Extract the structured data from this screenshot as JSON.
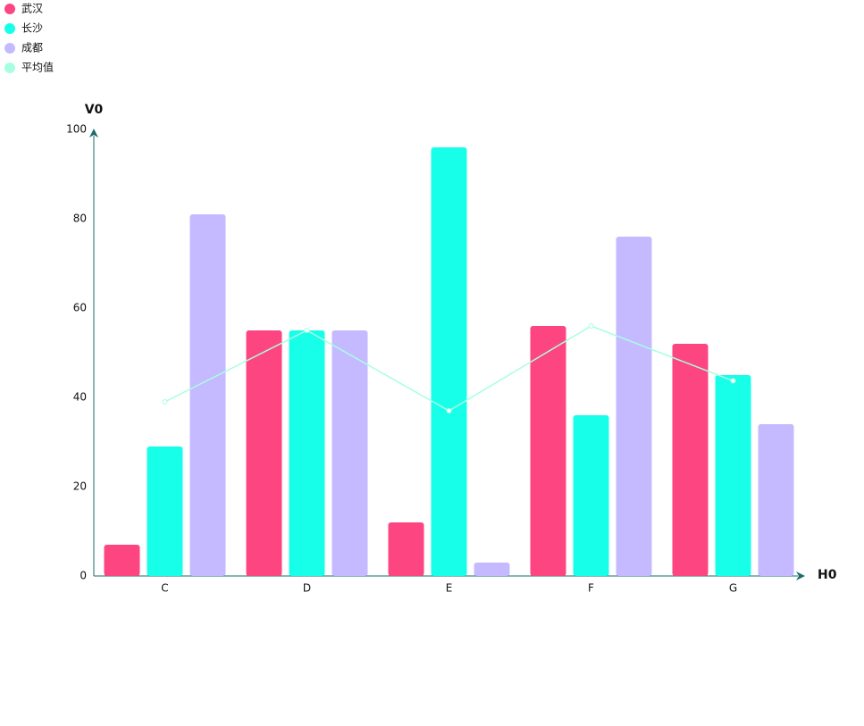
{
  "chart_data": {
    "type": "bar",
    "x_label": "H0",
    "y_label": "V0",
    "categories": [
      "C",
      "D",
      "E",
      "F",
      "G"
    ],
    "series": [
      {
        "name": "武汉",
        "color": "#fd4582",
        "values": [
          7,
          55,
          12,
          56,
          52
        ]
      },
      {
        "name": "长沙",
        "color": "#17ffe9",
        "values": [
          29,
          55,
          96,
          36,
          45
        ]
      },
      {
        "name": "成都",
        "color": "#c5baff",
        "values": [
          81,
          55,
          3,
          76,
          34
        ]
      },
      {
        "name": "平均值",
        "color": "#a8ffe0",
        "type": "line",
        "values": [
          39,
          55,
          37,
          56,
          43.7
        ]
      }
    ],
    "ylim": [
      0,
      100
    ],
    "yticks": [
      0,
      20,
      40,
      60,
      80,
      100
    ],
    "grid": false,
    "legend": "top-left"
  }
}
